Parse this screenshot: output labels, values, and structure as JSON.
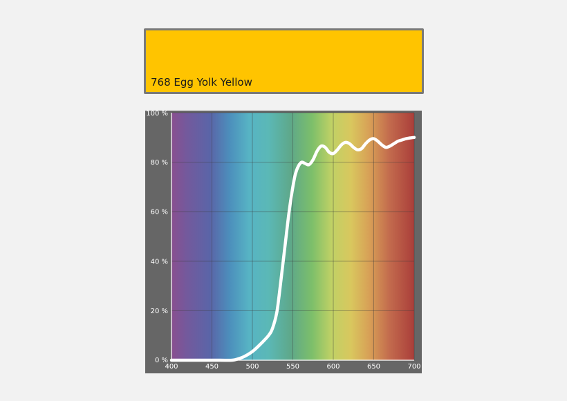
{
  "filter": {
    "name": "768 Egg Yolk Yellow",
    "color": "#ffc400"
  },
  "chart_data": {
    "type": "line",
    "title": "",
    "xlabel": "",
    "ylabel": "",
    "xlim": [
      400,
      700
    ],
    "ylim": [
      0,
      100
    ],
    "x_ticks": [
      {
        "value": 400,
        "label": "400"
      },
      {
        "value": 450,
        "label": "450"
      },
      {
        "value": 500,
        "label": "500"
      },
      {
        "value": 550,
        "label": "550"
      },
      {
        "value": 600,
        "label": "600"
      },
      {
        "value": 650,
        "label": "650"
      },
      {
        "value": 700,
        "label": "700"
      }
    ],
    "y_ticks": [
      {
        "value": 0,
        "label": "0 %"
      },
      {
        "value": 20,
        "label": "20 %"
      },
      {
        "value": 40,
        "label": "40 %"
      },
      {
        "value": 60,
        "label": "60 %"
      },
      {
        "value": 80,
        "label": "80 %"
      },
      {
        "value": 100,
        "label": "100 %"
      }
    ],
    "grid": true,
    "background": "visible-spectrum gradient",
    "line_color": "#ffffff",
    "x": [
      400,
      420,
      440,
      460,
      475,
      482,
      490,
      500,
      510,
      520,
      525,
      530,
      533,
      537,
      541,
      545,
      549,
      553,
      557,
      561,
      565,
      570,
      575,
      580,
      585,
      590,
      595,
      600,
      605,
      610,
      615,
      620,
      625,
      630,
      635,
      640,
      645,
      650,
      655,
      660,
      665,
      670,
      675,
      680,
      685,
      690,
      695,
      700
    ],
    "y": [
      0,
      0,
      0,
      0,
      0,
      0.5,
      1.5,
      3.5,
      6.5,
      10,
      13,
      19,
      26,
      37,
      48,
      59,
      68,
      75,
      78.5,
      80,
      79.5,
      79,
      81,
      84.5,
      86.5,
      86,
      84,
      83.5,
      85,
      87,
      88,
      87.5,
      86,
      85,
      85.5,
      87.5,
      89,
      89.5,
      88.5,
      87,
      86,
      86.5,
      87.5,
      88.5,
      89,
      89.5,
      89.8,
      90
    ]
  }
}
